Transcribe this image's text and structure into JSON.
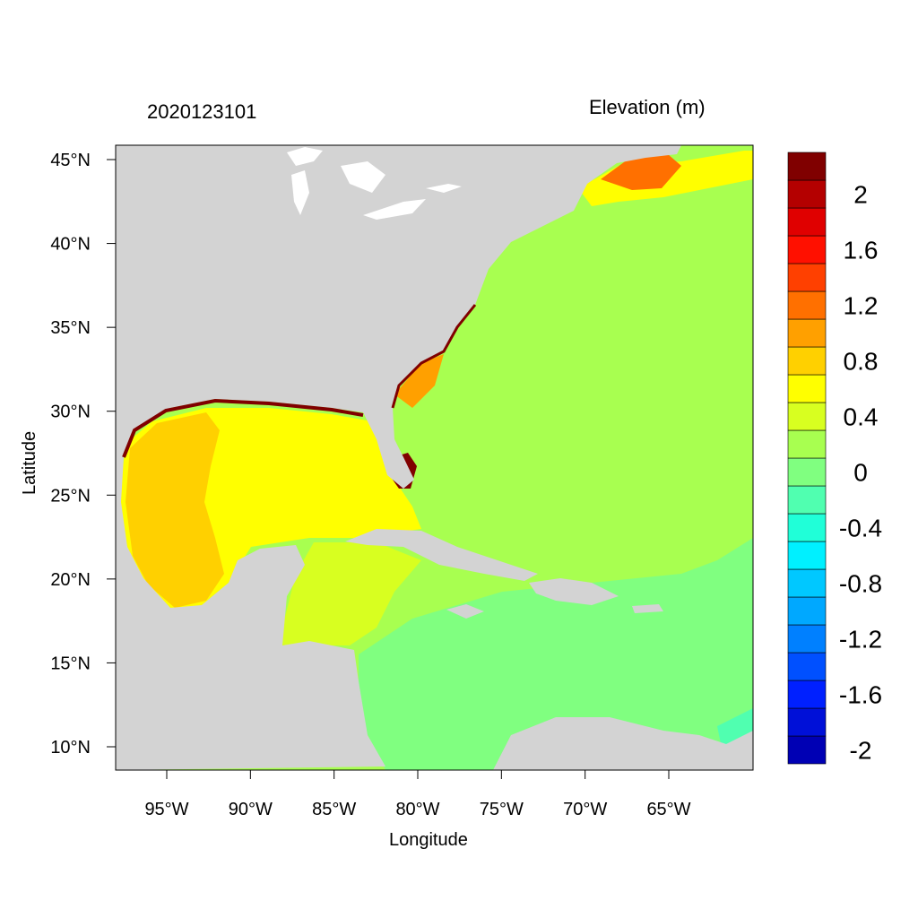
{
  "header": {
    "date": "2020123101",
    "variable": "Elevation (m)"
  },
  "axes": {
    "xlabel": "Longitude",
    "ylabel": "Latitude",
    "x_ticks": [
      {
        "value": -95,
        "label": "95°W"
      },
      {
        "value": -90,
        "label": "90°W"
      },
      {
        "value": -85,
        "label": "85°W"
      },
      {
        "value": -80,
        "label": "80°W"
      },
      {
        "value": -75,
        "label": "75°W"
      },
      {
        "value": -70,
        "label": "70°W"
      },
      {
        "value": -65,
        "label": "65°W"
      }
    ],
    "y_ticks": [
      {
        "value": 45,
        "label": "45°N"
      },
      {
        "value": 40,
        "label": "40°N"
      },
      {
        "value": 35,
        "label": "35°N"
      },
      {
        "value": 30,
        "label": "30°N"
      },
      {
        "value": 25,
        "label": "25°N"
      },
      {
        "value": 20,
        "label": "20°N"
      },
      {
        "value": 15,
        "label": "15°N"
      },
      {
        "value": 10,
        "label": "10°N"
      }
    ]
  },
  "colorbar": {
    "colors": [
      "#0000b4",
      "#0010d8",
      "#0020ff",
      "#0050ff",
      "#0080ff",
      "#00a8ff",
      "#00c8ff",
      "#00f0ff",
      "#20ffd8",
      "#50ffb0",
      "#80ff80",
      "#a8ff50",
      "#d8ff20",
      "#ffff00",
      "#ffd000",
      "#ffa000",
      "#ff7000",
      "#ff4000",
      "#ff1000",
      "#e00000",
      "#b40000",
      "#800000"
    ],
    "labels": [
      {
        "level": -2,
        "label": "-2"
      },
      {
        "level": -1.6,
        "label": "-1.6"
      },
      {
        "level": -1.2,
        "label": "-1.2"
      },
      {
        "level": -0.8,
        "label": "-0.8"
      },
      {
        "level": -0.4,
        "label": "-0.4"
      },
      {
        "level": 0,
        "label": "0"
      },
      {
        "level": 0.4,
        "label": "0.4"
      },
      {
        "level": 0.8,
        "label": "0.8"
      },
      {
        "level": 1.2,
        "label": "1.2"
      },
      {
        "level": 1.6,
        "label": "1.6"
      },
      {
        "level": 2,
        "label": "2"
      }
    ]
  },
  "map_colors": {
    "land": "#d3d3d3",
    "ocean_open": "#a8ff50",
    "ocean_south": "#80ff80",
    "gulf": "#ffff00",
    "gulf_west": "#ffd000",
    "caribbean_nw": "#d8ff20",
    "surge_high": "#800000",
    "coast_white": "#ffffff"
  }
}
